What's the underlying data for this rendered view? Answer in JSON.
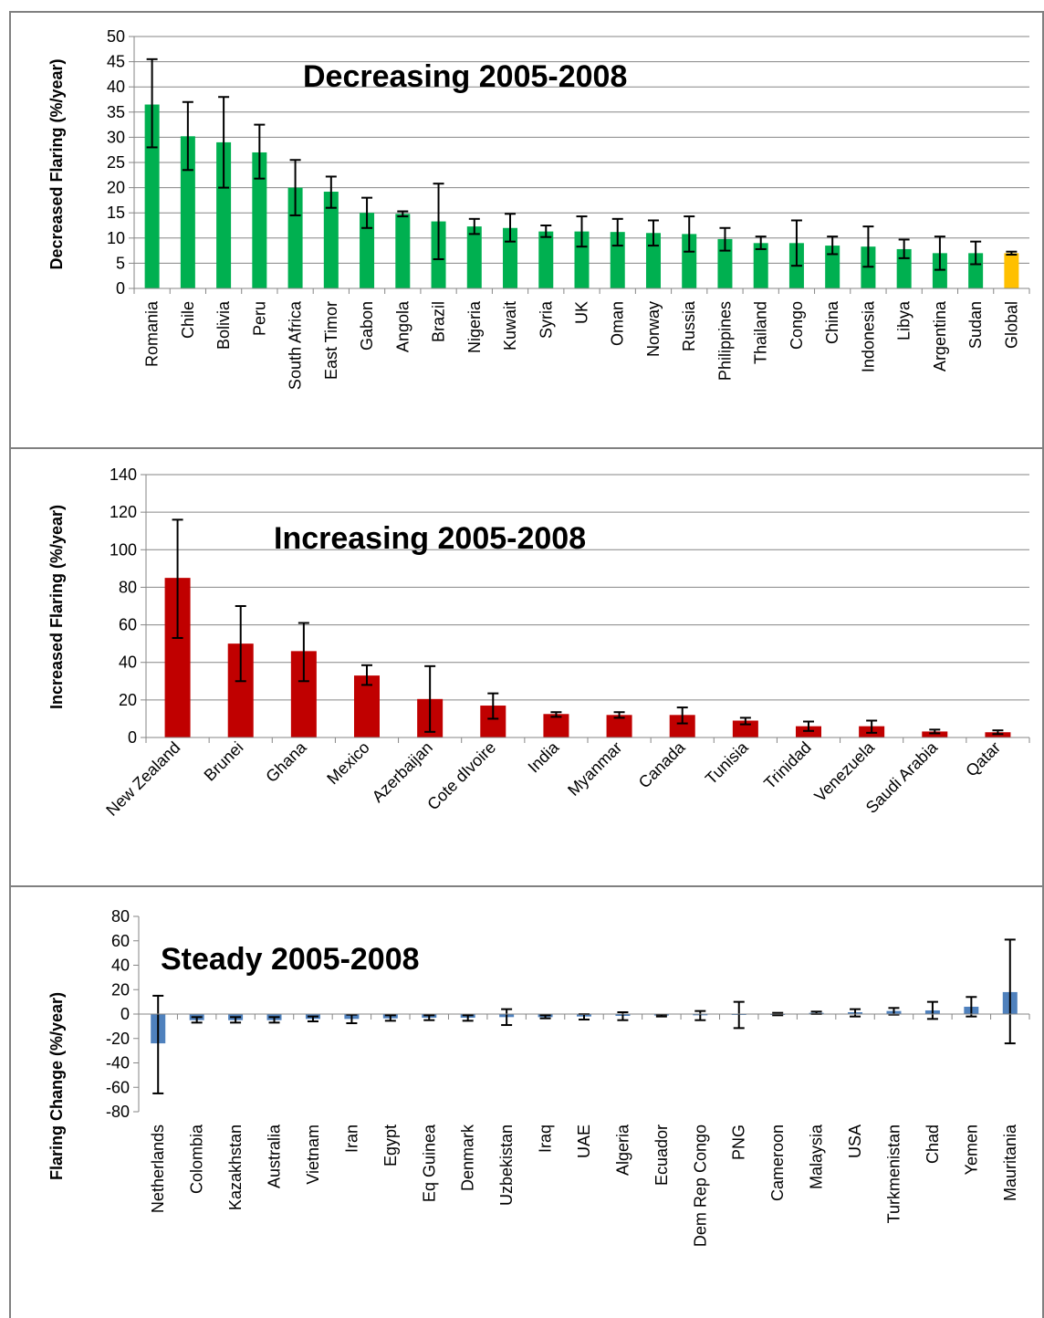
{
  "chart_data": [
    {
      "type": "bar",
      "title": "Decreasing 2005-2008",
      "ylabel": "Decreased Flaring (%/year)",
      "ylim": [
        0,
        50
      ],
      "yticks": [
        0,
        5,
        10,
        15,
        20,
        25,
        30,
        35,
        40,
        45,
        50
      ],
      "grid": true,
      "categories": [
        "Romania",
        "Chile",
        "Bolivia",
        "Peru",
        "South Africa",
        "East Timor",
        "Gabon",
        "Angola",
        "Brazil",
        "Nigeria",
        "Kuwait",
        "Syria",
        "UK",
        "Oman",
        "Norway",
        "Russia",
        "Philippines",
        "Thailand",
        "Congo",
        "China",
        "Indonesia",
        "Libya",
        "Argentina",
        "Sudan",
        "Global"
      ],
      "values": [
        36.5,
        30.2,
        29.0,
        27.0,
        20.0,
        19.2,
        15.0,
        14.8,
        13.3,
        12.3,
        12.0,
        11.3,
        11.3,
        11.2,
        11.0,
        10.8,
        9.8,
        9.0,
        9.0,
        8.5,
        8.3,
        7.8,
        7.0,
        7.0,
        7.0
      ],
      "err_low": [
        28.0,
        23.5,
        20.0,
        21.8,
        14.5,
        16.0,
        12.0,
        14.3,
        5.8,
        10.8,
        9.3,
        10.2,
        8.3,
        8.5,
        8.5,
        7.3,
        7.5,
        7.8,
        4.5,
        6.8,
        4.3,
        6.0,
        3.7,
        4.8,
        6.7
      ],
      "err_high": [
        45.5,
        37.0,
        38.0,
        32.5,
        25.5,
        22.2,
        18.0,
        15.3,
        20.8,
        13.8,
        14.8,
        12.5,
        14.3,
        13.8,
        13.5,
        14.3,
        12.0,
        10.3,
        13.5,
        10.3,
        12.3,
        9.7,
        10.3,
        9.3,
        7.3
      ],
      "colors": {
        "bar": "#00b050",
        "global_bar": "#ffc000",
        "grid": "#868686",
        "error": "#000000"
      }
    },
    {
      "type": "bar",
      "title": "Increasing 2005-2008",
      "ylabel": "Increased Flaring (%/year)",
      "ylim": [
        0,
        140
      ],
      "yticks": [
        0,
        20,
        40,
        60,
        80,
        100,
        120,
        140
      ],
      "grid": true,
      "categories": [
        "New Zealand",
        "Brunei",
        "Ghana",
        "Mexico",
        "Azerbaijan",
        "Cote dIvoire",
        "India",
        "Myanmar",
        "Canada",
        "Tunisia",
        "Trinidad",
        "Venezuela",
        "Saudi Arabia",
        "Qatar"
      ],
      "values": [
        85,
        50,
        46,
        33,
        20.5,
        17,
        12.5,
        12,
        12,
        9,
        6,
        6,
        3.2,
        2.8
      ],
      "err_low": [
        53,
        30,
        30,
        28,
        3,
        10,
        11,
        10.5,
        7.5,
        7,
        3.5,
        2.5,
        2.2,
        1.8
      ],
      "err_high": [
        116,
        70,
        61,
        38.5,
        38,
        23.5,
        13.5,
        13.5,
        16,
        10.5,
        8.5,
        9,
        4.2,
        3.8
      ],
      "colors": {
        "bar": "#c00000",
        "grid": "#868686",
        "error": "#000000"
      }
    },
    {
      "type": "bar",
      "title": "Steady 2005-2008",
      "ylabel": "Flaring Change  (%/year)",
      "ylim": [
        -80,
        80
      ],
      "yticks": [
        -80,
        -60,
        -40,
        -20,
        0,
        20,
        40,
        60,
        80
      ],
      "grid": false,
      "categories": [
        "Netherlands",
        "Colombia",
        "Kazakhstan",
        "Australia",
        "Vietnam",
        "Iran",
        "Egypt",
        "Eq Guinea",
        "Denmark",
        "Uzbekistan",
        "Iraq",
        "UAE",
        "Algeria",
        "Ecuador",
        "Dem Rep Congo",
        "PNG",
        "Cameroon",
        "Malaysia",
        "USA",
        "Turkmenistan",
        "Chad",
        "Yemen",
        "Mauritania"
      ],
      "values": [
        -24,
        -5,
        -5,
        -5,
        -4,
        -4,
        -3.5,
        -3,
        -3,
        -2.5,
        -2.5,
        -2,
        -1.5,
        -1.2,
        -1,
        -0.5,
        0,
        1,
        1.5,
        2.5,
        3,
        6,
        18
      ],
      "err_low": [
        -65,
        -7,
        -7,
        -7,
        -6,
        -7.5,
        -5.5,
        -5,
        -5.5,
        -9,
        -3.5,
        -4.5,
        -5,
        -2,
        -5,
        -11.5,
        -1,
        0,
        -2,
        -0.5,
        -4,
        -2,
        -24
      ],
      "err_high": [
        15,
        -2.5,
        -2.5,
        -2.5,
        -2,
        -0.5,
        -1,
        -1,
        -1,
        4,
        -1,
        0,
        1.5,
        -0.5,
        2.5,
        10,
        1,
        2,
        4,
        5,
        10,
        14,
        61
      ],
      "colors": {
        "bar": "#4f81bd",
        "error": "#000000"
      }
    }
  ]
}
